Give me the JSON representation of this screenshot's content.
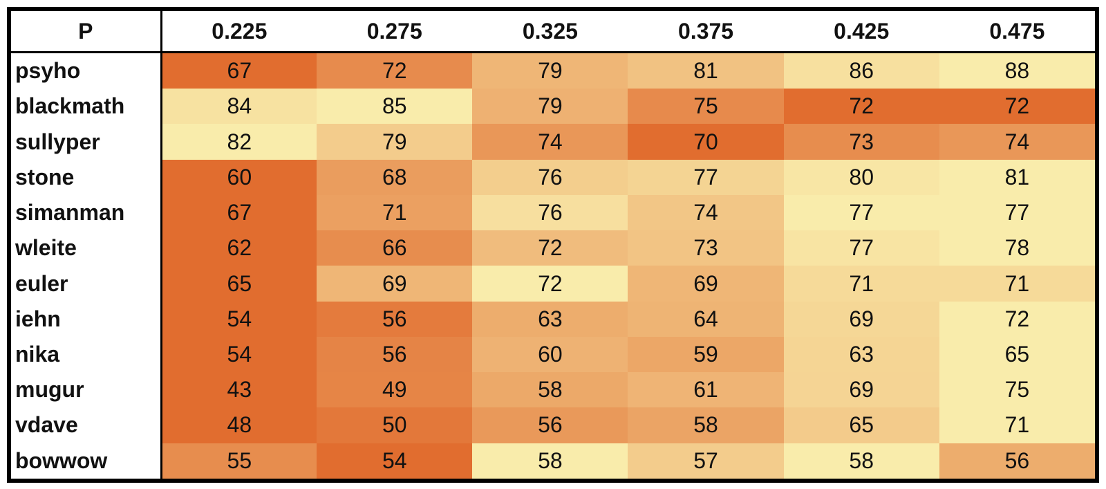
{
  "chart_data": {
    "type": "heatmap",
    "corner_label": "P",
    "columns": [
      "0.225",
      "0.275",
      "0.325",
      "0.375",
      "0.425",
      "0.475"
    ],
    "rows": [
      "psyho",
      "blackmath",
      "sullyper",
      "stone",
      "simanman",
      "wleite",
      "euler",
      "iehn",
      "nika",
      "mugur",
      "vdave",
      "bowwow"
    ],
    "values": [
      [
        67,
        72,
        79,
        81,
        86,
        88
      ],
      [
        84,
        85,
        79,
        75,
        72,
        72
      ],
      [
        82,
        79,
        74,
        70,
        73,
        74
      ],
      [
        60,
        68,
        76,
        77,
        80,
        81
      ],
      [
        67,
        71,
        76,
        74,
        77,
        77
      ],
      [
        62,
        66,
        72,
        73,
        77,
        78
      ],
      [
        65,
        69,
        72,
        69,
        71,
        71
      ],
      [
        54,
        56,
        63,
        64,
        69,
        72
      ],
      [
        54,
        56,
        60,
        59,
        63,
        65
      ],
      [
        43,
        49,
        58,
        61,
        69,
        75
      ],
      [
        48,
        50,
        56,
        58,
        65,
        71
      ],
      [
        55,
        54,
        58,
        57,
        58,
        56
      ]
    ],
    "colors": {
      "low": "#e16d2f",
      "high": "#f9ecab"
    },
    "color_scale": "per-row"
  }
}
